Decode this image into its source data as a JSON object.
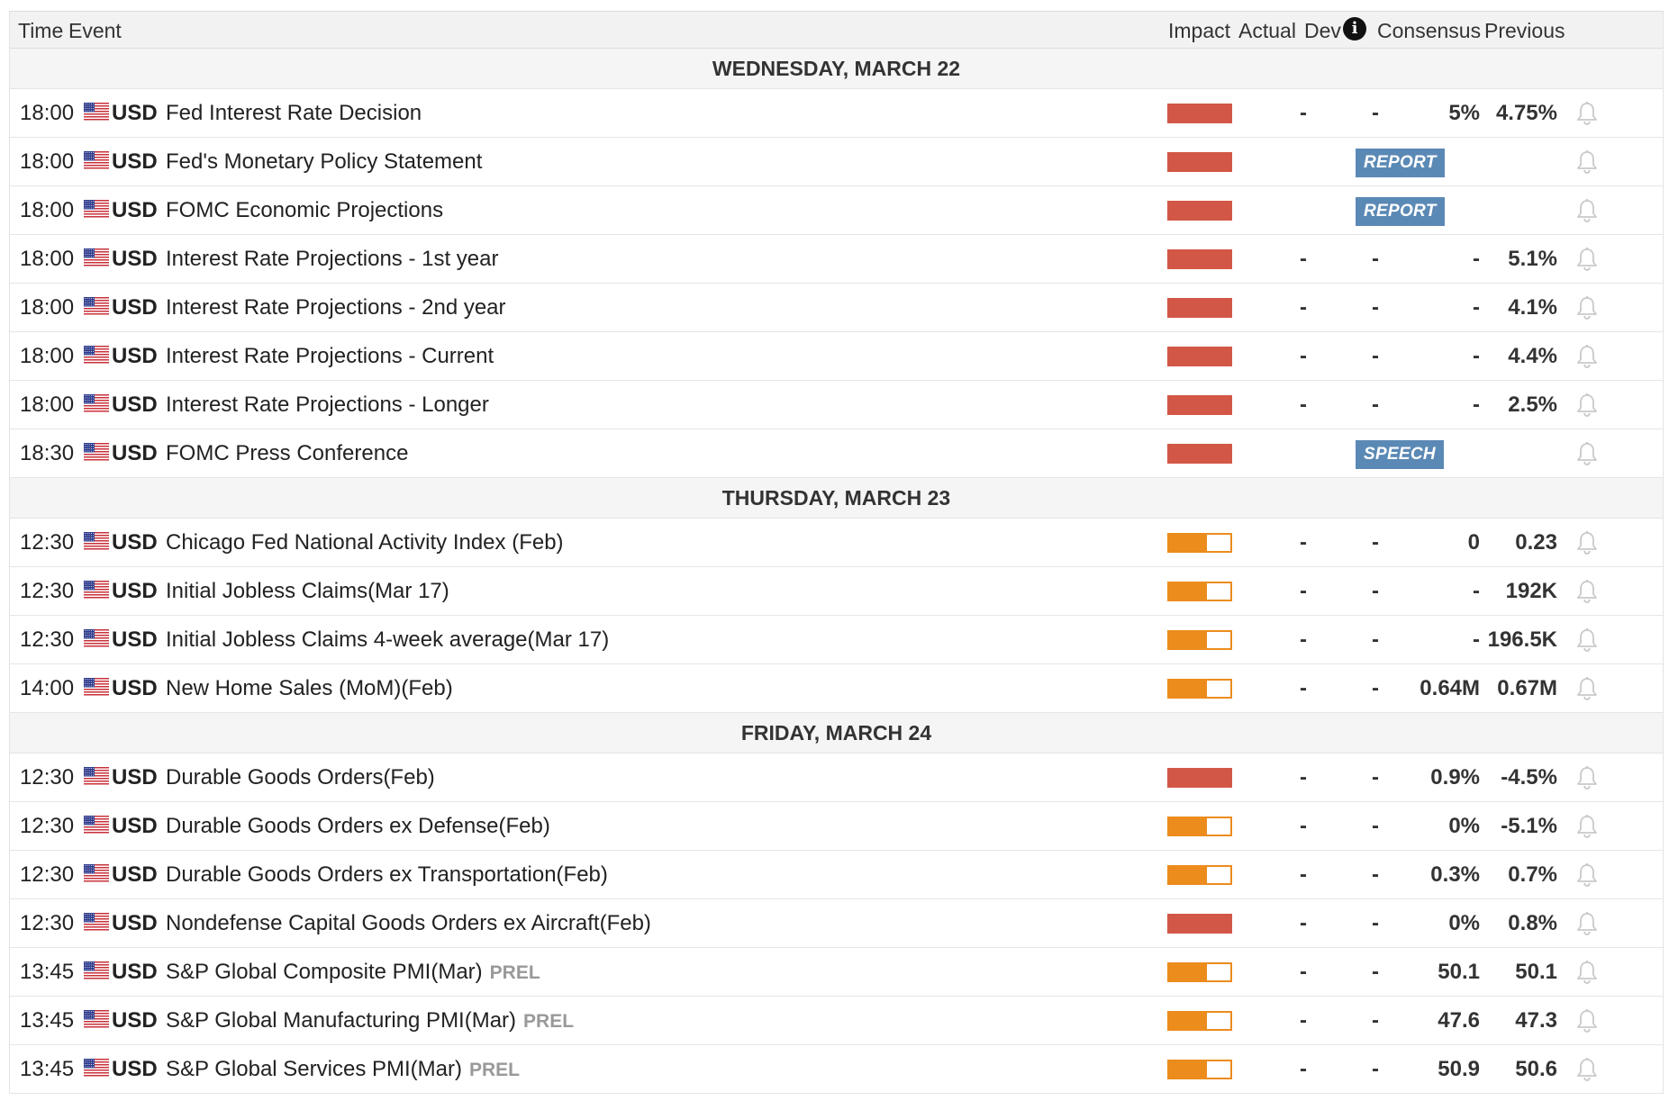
{
  "header": {
    "time": "Time",
    "event": "Event",
    "impact": "Impact",
    "actual": "Actual",
    "dev": "Dev",
    "consensus": "Consensus",
    "previous": "Previous"
  },
  "icons": {
    "flag": "us-flag-icon",
    "bell": "bell-icon",
    "info": "info-icon"
  },
  "colors": {
    "high_impact": "#d35746",
    "medium_impact": "#ec8c1d",
    "badge": "#5b89b5"
  },
  "days": [
    {
      "label": "WEDNESDAY, MARCH 22",
      "events": [
        {
          "time": "18:00",
          "currency": "USD",
          "name": "Fed Interest Rate Decision",
          "tag": "",
          "impact": "high",
          "actual": "-",
          "dev": "-",
          "consensus": "5%",
          "previous": "4.75%",
          "badge": ""
        },
        {
          "time": "18:00",
          "currency": "USD",
          "name": "Fed's Monetary Policy Statement",
          "tag": "",
          "impact": "high",
          "actual": "",
          "dev": "",
          "consensus": "",
          "previous": "",
          "badge": "REPORT"
        },
        {
          "time": "18:00",
          "currency": "USD",
          "name": "FOMC Economic Projections",
          "tag": "",
          "impact": "high",
          "actual": "",
          "dev": "",
          "consensus": "",
          "previous": "",
          "badge": "REPORT"
        },
        {
          "time": "18:00",
          "currency": "USD",
          "name": "Interest Rate Projections - 1st year",
          "tag": "",
          "impact": "high",
          "actual": "-",
          "dev": "-",
          "consensus": "-",
          "previous": "5.1%",
          "badge": ""
        },
        {
          "time": "18:00",
          "currency": "USD",
          "name": "Interest Rate Projections - 2nd year",
          "tag": "",
          "impact": "high",
          "actual": "-",
          "dev": "-",
          "consensus": "-",
          "previous": "4.1%",
          "badge": ""
        },
        {
          "time": "18:00",
          "currency": "USD",
          "name": "Interest Rate Projections - Current",
          "tag": "",
          "impact": "high",
          "actual": "-",
          "dev": "-",
          "consensus": "-",
          "previous": "4.4%",
          "badge": ""
        },
        {
          "time": "18:00",
          "currency": "USD",
          "name": "Interest Rate Projections - Longer",
          "tag": "",
          "impact": "high",
          "actual": "-",
          "dev": "-",
          "consensus": "-",
          "previous": "2.5%",
          "badge": ""
        },
        {
          "time": "18:30",
          "currency": "USD",
          "name": "FOMC Press Conference",
          "tag": "",
          "impact": "high",
          "actual": "",
          "dev": "",
          "consensus": "",
          "previous": "",
          "badge": "SPEECH"
        }
      ]
    },
    {
      "label": "THURSDAY, MARCH 23",
      "events": [
        {
          "time": "12:30",
          "currency": "USD",
          "name": "Chicago Fed National Activity Index (Feb)",
          "tag": "",
          "impact": "medium",
          "actual": "-",
          "dev": "-",
          "consensus": "0",
          "previous": "0.23",
          "badge": ""
        },
        {
          "time": "12:30",
          "currency": "USD",
          "name": "Initial Jobless Claims(Mar 17)",
          "tag": "",
          "impact": "medium",
          "actual": "-",
          "dev": "-",
          "consensus": "-",
          "previous": "192K",
          "badge": ""
        },
        {
          "time": "12:30",
          "currency": "USD",
          "name": "Initial Jobless Claims 4-week average(Mar 17)",
          "tag": "",
          "impact": "medium",
          "actual": "-",
          "dev": "-",
          "consensus": "-",
          "previous": "196.5K",
          "badge": ""
        },
        {
          "time": "14:00",
          "currency": "USD",
          "name": "New Home Sales (MoM)(Feb)",
          "tag": "",
          "impact": "medium",
          "actual": "-",
          "dev": "-",
          "consensus": "0.64M",
          "previous": "0.67M",
          "badge": ""
        }
      ]
    },
    {
      "label": "FRIDAY, MARCH 24",
      "events": [
        {
          "time": "12:30",
          "currency": "USD",
          "name": "Durable Goods Orders(Feb)",
          "tag": "",
          "impact": "high",
          "actual": "-",
          "dev": "-",
          "consensus": "0.9%",
          "previous": "-4.5%",
          "badge": ""
        },
        {
          "time": "12:30",
          "currency": "USD",
          "name": "Durable Goods Orders ex Defense(Feb)",
          "tag": "",
          "impact": "medium",
          "actual": "-",
          "dev": "-",
          "consensus": "0%",
          "previous": "-5.1%",
          "badge": ""
        },
        {
          "time": "12:30",
          "currency": "USD",
          "name": "Durable Goods Orders ex Transportation(Feb)",
          "tag": "",
          "impact": "medium",
          "actual": "-",
          "dev": "-",
          "consensus": "0.3%",
          "previous": "0.7%",
          "badge": ""
        },
        {
          "time": "12:30",
          "currency": "USD",
          "name": "Nondefense Capital Goods Orders ex Aircraft(Feb)",
          "tag": "",
          "impact": "high",
          "actual": "-",
          "dev": "-",
          "consensus": "0%",
          "previous": "0.8%",
          "badge": ""
        },
        {
          "time": "13:45",
          "currency": "USD",
          "name": "S&P Global Composite PMI(Mar)",
          "tag": "PREL",
          "impact": "medium",
          "actual": "-",
          "dev": "-",
          "consensus": "50.1",
          "previous": "50.1",
          "badge": ""
        },
        {
          "time": "13:45",
          "currency": "USD",
          "name": "S&P Global Manufacturing PMI(Mar)",
          "tag": "PREL",
          "impact": "medium",
          "actual": "-",
          "dev": "-",
          "consensus": "47.6",
          "previous": "47.3",
          "badge": ""
        },
        {
          "time": "13:45",
          "currency": "USD",
          "name": "S&P Global Services PMI(Mar)",
          "tag": "PREL",
          "impact": "medium",
          "actual": "-",
          "dev": "-",
          "consensus": "50.9",
          "previous": "50.6",
          "badge": ""
        }
      ]
    }
  ]
}
